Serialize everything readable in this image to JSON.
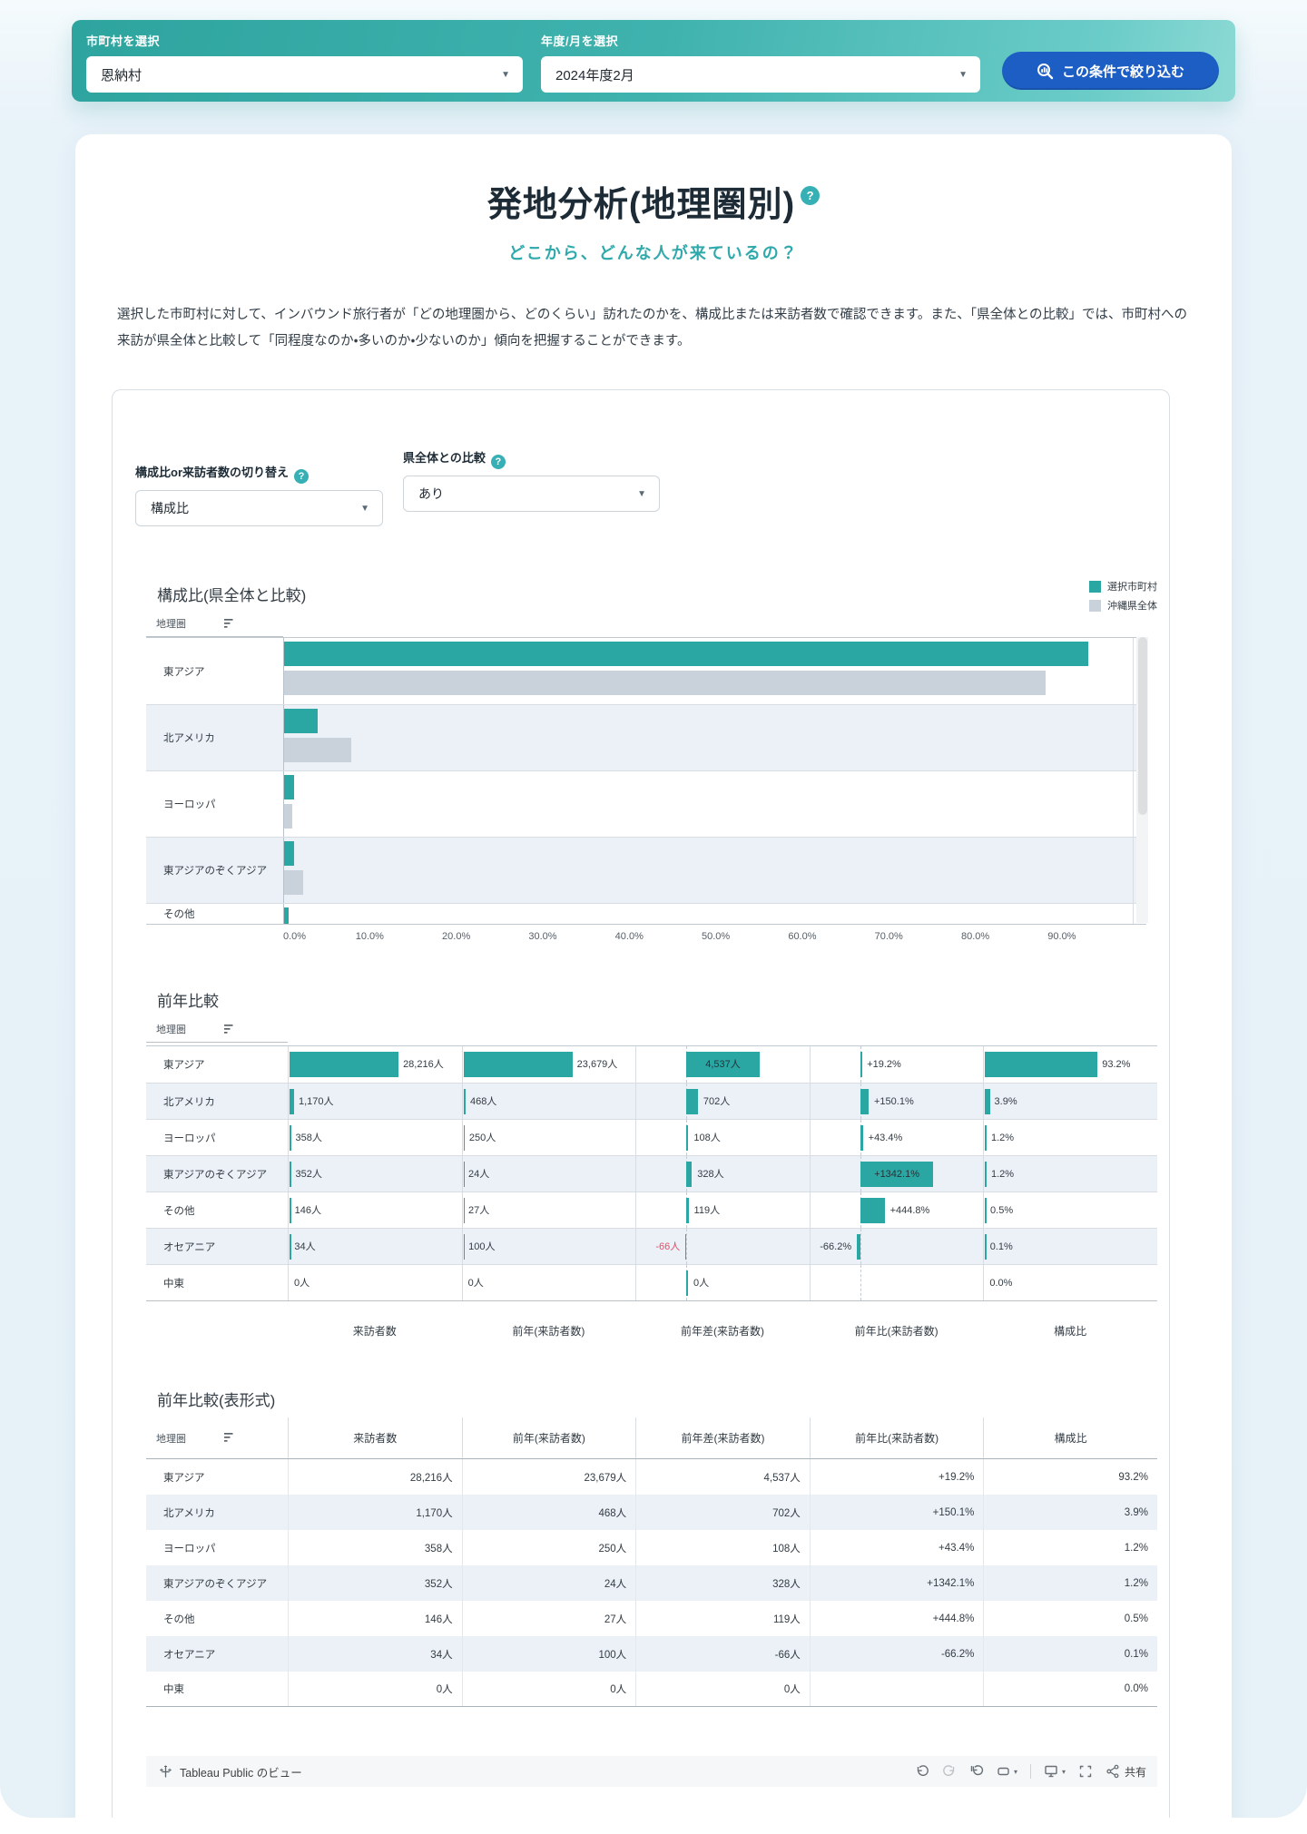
{
  "filter_bar": {
    "municipality_label": "市町村を選択",
    "municipality_value": "恩納村",
    "period_label": "年度/月を選択",
    "period_value": "2024年度2月",
    "submit_button": "この条件で絞り込む"
  },
  "page": {
    "title": "発地分析(地理圏別)",
    "help_glyph": "?",
    "subtitle": "どこから、どんな人が来ているの？",
    "description": "選択した市町村に対して、インバウンド旅行者が「どの地理圏から、どのくらい」訪れたのかを、構成比または来訪者数で確認できます。また、「県全体との比較」では、市町村への来訪が県全体と比較して「同程度なのか・多いのか・少ないのか」傾向を把握することができます。"
  },
  "controls": {
    "metric_label": "構成比or来訪者数の切り替え",
    "metric_value": "構成比",
    "comparison_label": "県全体との比較",
    "comparison_value": "あり"
  },
  "colors": {
    "teal_bar": "#2aa7a3",
    "gray_bar": "#c9d2da",
    "accent_teal": "#36b0b4",
    "button_blue": "#1c5ec4",
    "negative_red": "#e0506b",
    "row_stripe": "#ebf1f7"
  },
  "chart_data": [
    {
      "type": "bar",
      "title": "構成比(県全体と比較)",
      "row_header": "地理圏",
      "categories": [
        "東アジア",
        "北アメリカ",
        "ヨーロッパ",
        "東アジアのぞくアジア",
        "その他"
      ],
      "series": [
        {
          "name": "選択市町村",
          "values": [
            93.2,
            3.9,
            1.2,
            1.2,
            0.5
          ]
        },
        {
          "name": "沖縄県全体",
          "values": [
            88.2,
            7.8,
            0.9,
            2.2,
            null
          ]
        }
      ],
      "xticks": [
        "0.0%",
        "10.0%",
        "20.0%",
        "30.0%",
        "40.0%",
        "50.0%",
        "60.0%",
        "70.0%",
        "80.0%",
        "90.0%"
      ],
      "xlabel": "",
      "ylabel": "",
      "xmax": 98.3,
      "grid": false,
      "legend_position": "top-right",
      "note": "last row partially clipped by vertical scrollbar viewport"
    },
    {
      "type": "bar-table",
      "title": "前年比較",
      "row_header": "地理圏",
      "columns": [
        "来訪者数",
        "前年(来訪者数)",
        "前年差(来訪者数)",
        "前年比(来訪者数)",
        "構成比"
      ],
      "col_conf": [
        {
          "kind": "bar",
          "max": 28216,
          "scale": 63
        },
        {
          "kind": "bar",
          "max": 23679,
          "scale": 63
        },
        {
          "kind": "diverging",
          "max": 4537,
          "scale": 42,
          "zero_tick": true
        },
        {
          "kind": "diverging",
          "max": 1342.1,
          "scale": 42
        },
        {
          "kind": "bar",
          "max": 93.2,
          "scale": 65
        }
      ],
      "rows": [
        {
          "label": "東アジア",
          "cells": [
            {
              "value": 28216,
              "text": "28,216人"
            },
            {
              "value": 23679,
              "text": "23,679人"
            },
            {
              "value": 4537,
              "text": "4,537人",
              "inside": true
            },
            {
              "value": 19.2,
              "text": "+19.2%"
            },
            {
              "value": 93.2,
              "text": "93.2%"
            }
          ]
        },
        {
          "label": "北アメリカ",
          "cells": [
            {
              "value": 1170,
              "text": "1,170人"
            },
            {
              "value": 468,
              "text": "468人"
            },
            {
              "value": 702,
              "text": "702人"
            },
            {
              "value": 150.1,
              "text": "+150.1%"
            },
            {
              "value": 3.9,
              "text": "3.9%"
            }
          ]
        },
        {
          "label": "ヨーロッパ",
          "cells": [
            {
              "value": 358,
              "text": "358人"
            },
            {
              "value": 250,
              "text": "250人"
            },
            {
              "value": 108,
              "text": "108人"
            },
            {
              "value": 43.4,
              "text": "+43.4%"
            },
            {
              "value": 1.2,
              "text": "1.2%"
            }
          ]
        },
        {
          "label": "東アジアのぞくアジア",
          "cells": [
            {
              "value": 352,
              "text": "352人"
            },
            {
              "value": 24,
              "text": "24人"
            },
            {
              "value": 328,
              "text": "328人"
            },
            {
              "value": 1342.1,
              "text": "+1342.1%",
              "inside": true
            },
            {
              "value": 1.2,
              "text": "1.2%"
            }
          ]
        },
        {
          "label": "その他",
          "cells": [
            {
              "value": 146,
              "text": "146人"
            },
            {
              "value": 27,
              "text": "27人"
            },
            {
              "value": 119,
              "text": "119人"
            },
            {
              "value": 444.8,
              "text": "+444.8%"
            },
            {
              "value": 0.5,
              "text": "0.5%"
            }
          ]
        },
        {
          "label": "オセアニア",
          "cells": [
            {
              "value": 34,
              "text": "34人"
            },
            {
              "value": 100,
              "text": "100人"
            },
            {
              "value": -66,
              "text": "-66人",
              "red": true
            },
            {
              "value": -66.2,
              "text": "-66.2%"
            },
            {
              "value": 0.1,
              "text": "0.1%"
            }
          ]
        },
        {
          "label": "中東",
          "cells": [
            {
              "value": 0,
              "text": "0人"
            },
            {
              "value": 0,
              "text": "0人"
            },
            {
              "value": 0,
              "text": "0人"
            },
            {
              "value": null,
              "text": ""
            },
            {
              "value": 0,
              "text": "0.0%"
            }
          ]
        }
      ]
    },
    {
      "type": "table",
      "title": "前年比較(表形式)",
      "row_header": "地理圏",
      "columns": [
        "来訪者数",
        "前年(来訪者数)",
        "前年差(来訪者数)",
        "前年比(来訪者数)",
        "構成比"
      ],
      "rows": [
        {
          "label": "東アジア",
          "cells": [
            "28,216人",
            "23,679人",
            "4,537人",
            "+19.2%",
            "93.2%"
          ]
        },
        {
          "label": "北アメリカ",
          "cells": [
            "1,170人",
            "468人",
            "702人",
            "+150.1%",
            "3.9%"
          ]
        },
        {
          "label": "ヨーロッパ",
          "cells": [
            "358人",
            "250人",
            "108人",
            "+43.4%",
            "1.2%"
          ]
        },
        {
          "label": "東アジアのぞくアジア",
          "cells": [
            "352人",
            "24人",
            "328人",
            "+1342.1%",
            "1.2%"
          ]
        },
        {
          "label": "その他",
          "cells": [
            "146人",
            "27人",
            "119人",
            "+444.8%",
            "0.5%"
          ]
        },
        {
          "label": "オセアニア",
          "cells": [
            "34人",
            "100人",
            "-66人",
            "-66.2%",
            "0.1%"
          ]
        },
        {
          "label": "中東",
          "cells": [
            "0人",
            "0人",
            "0人",
            "",
            "0.0%"
          ]
        }
      ]
    }
  ],
  "footer": {
    "view_label": "Tableau Public のビュー",
    "share_label": "共有"
  }
}
